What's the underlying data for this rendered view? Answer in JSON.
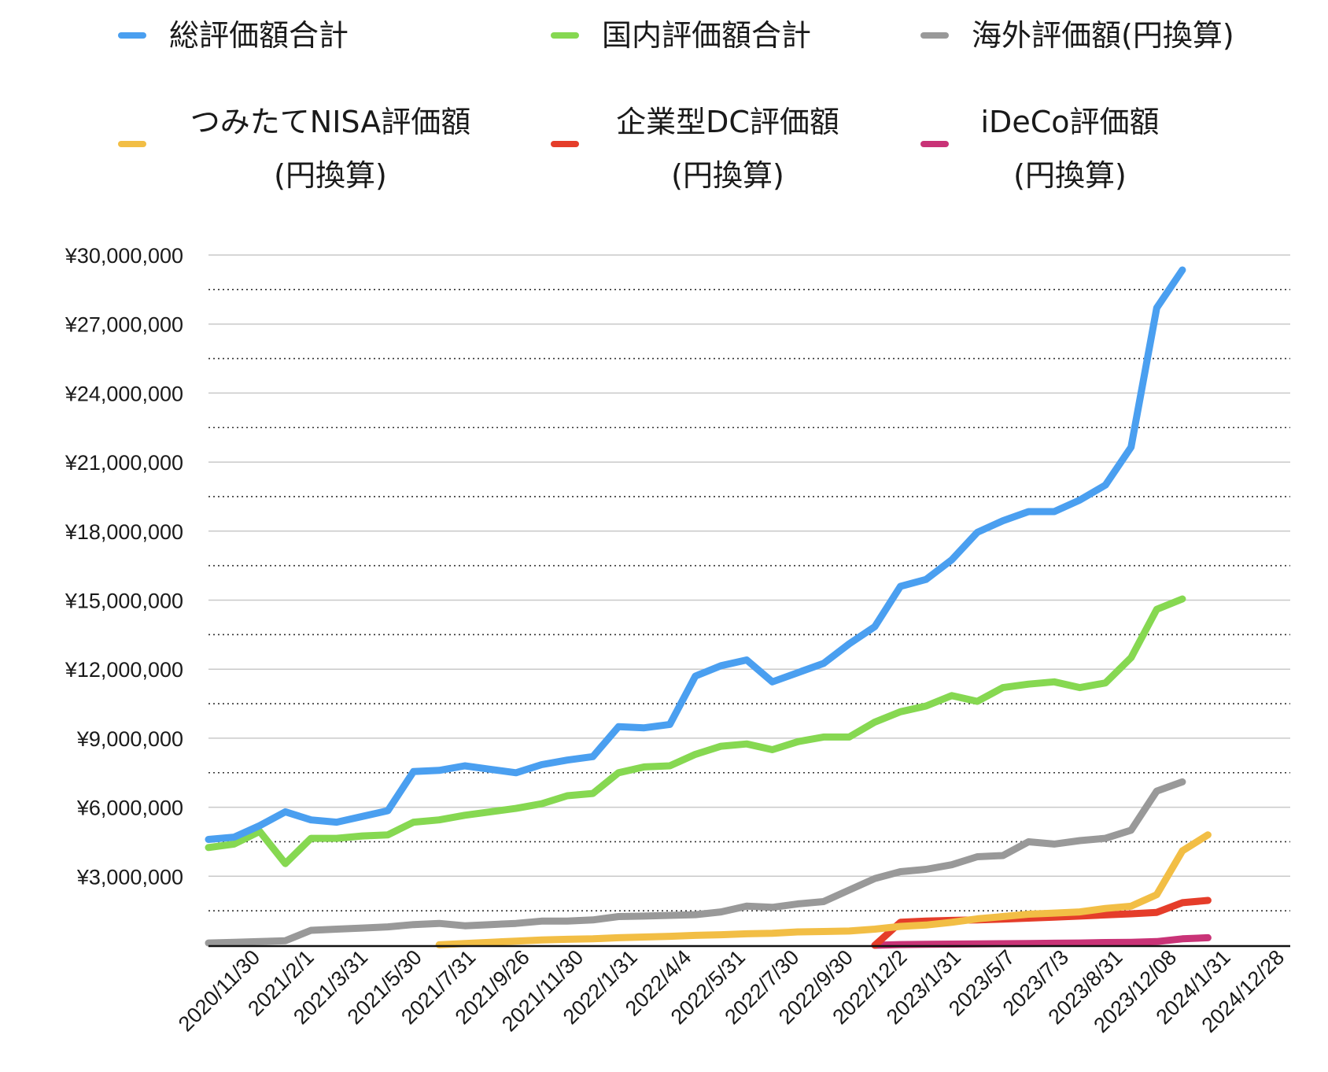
{
  "colors": {
    "total": "#4a9ff0",
    "domestic": "#86d851",
    "foreign": "#999999",
    "nisa": "#f2be45",
    "dc": "#e53d2a",
    "ideco": "#c93377"
  },
  "chart_data": {
    "type": "line",
    "title": "",
    "xlabel": "",
    "ylabel": "",
    "ylim": [
      0,
      30000000
    ],
    "y_ticks": [
      "¥3,000,000",
      "¥6,000,000",
      "¥9,000,000",
      "¥12,000,000",
      "¥15,000,000",
      "¥18,000,000",
      "¥21,000,000",
      "¥24,000,000",
      "¥27,000,000",
      "¥30,000,000"
    ],
    "x_tick_labels": [
      "2020/11/30",
      "2021/2/1",
      "2021/3/31",
      "2021/5/30",
      "2021/7/31",
      "2021/9/26",
      "2021/11/30",
      "2022/1/31",
      "2022/4/4",
      "2022/5/31",
      "2022/7/30",
      "2022/9/30",
      "2022/12/2",
      "2023/1/31",
      "2023/5/7",
      "2023/7/3",
      "2023/8/31",
      "2023/12/08",
      "2024/1/31",
      "2024/12/28"
    ],
    "grid": "horizontal major solid, minor dotted",
    "legend_position": "top",
    "legend": [
      {
        "key": "total",
        "label": "総評価額合計"
      },
      {
        "key": "domestic",
        "label": "国内評価額合計"
      },
      {
        "key": "foreign",
        "label": "海外評価額(円換算)"
      },
      {
        "key": "nisa",
        "label": "つみたてNISA評価額",
        "label2": "(円換算)"
      },
      {
        "key": "dc",
        "label": "企業型DC評価額",
        "label2": "(円換算)"
      },
      {
        "key": "ideco",
        "label": "iDeCo評価額",
        "label2": "(円換算)"
      }
    ],
    "series": [
      {
        "key": "total",
        "name": "総評価額合計",
        "start_index": 0,
        "values": [
          4600000,
          4700000,
          5200000,
          5800000,
          5450000,
          5350000,
          5600000,
          5850000,
          7550000,
          7600000,
          7800000,
          7650000,
          7500000,
          7850000,
          8050000,
          8200000,
          9500000,
          9450000,
          9600000,
          11700000,
          12150000,
          12400000,
          11450000,
          11850000,
          12250000,
          13100000,
          13850000,
          15600000,
          15900000,
          16750000,
          17950000,
          18450000,
          18850000,
          18850000,
          19350000,
          20000000,
          21650000,
          27700000,
          29350000
        ]
      },
      {
        "key": "domestic",
        "name": "国内評価額合計",
        "start_index": 0,
        "values": [
          4250000,
          4400000,
          4950000,
          3550000,
          4650000,
          4650000,
          4750000,
          4800000,
          5350000,
          5450000,
          5650000,
          5800000,
          5950000,
          6150000,
          6500000,
          6600000,
          7500000,
          7750000,
          7800000,
          8300000,
          8650000,
          8750000,
          8500000,
          8850000,
          9050000,
          9050000,
          9700000,
          10150000,
          10400000,
          10850000,
          10600000,
          11200000,
          11350000,
          11450000,
          11200000,
          11400000,
          12500000,
          14600000,
          15050000
        ]
      },
      {
        "key": "foreign",
        "name": "海外評価額(円換算)",
        "start_index": 0,
        "values": [
          100000,
          130000,
          160000,
          200000,
          650000,
          700000,
          750000,
          800000,
          900000,
          950000,
          850000,
          900000,
          950000,
          1050000,
          1050000,
          1100000,
          1250000,
          1270000,
          1300000,
          1330000,
          1450000,
          1700000,
          1650000,
          1800000,
          1900000,
          2400000,
          2900000,
          3200000,
          3300000,
          3500000,
          3850000,
          3900000,
          4500000,
          4400000,
          4550000,
          4650000,
          5000000,
          6700000,
          7100000
        ]
      },
      {
        "key": "nisa",
        "name": "つみたてNISA評価額(円換算)",
        "start_index": 9,
        "values": [
          20000,
          80000,
          130000,
          180000,
          230000,
          260000,
          280000,
          330000,
          360000,
          390000,
          430000,
          460000,
          500000,
          520000,
          580000,
          600000,
          620000,
          700000,
          820000,
          880000,
          1000000,
          1150000,
          1250000,
          1350000,
          1400000,
          1450000,
          1600000,
          1700000,
          2200000,
          4100000,
          4800000
        ]
      },
      {
        "key": "dc",
        "name": "企業型DC評価額(円換算)",
        "start_index": 26,
        "values": [
          0,
          1000000,
          1050000,
          1080000,
          1100000,
          1140000,
          1180000,
          1220000,
          1270000,
          1320000,
          1370000,
          1430000,
          1850000,
          1950000
        ]
      },
      {
        "key": "ideco",
        "name": "iDeCo評価額(円換算)",
        "start_index": 26,
        "values": [
          0,
          30000,
          40000,
          50000,
          60000,
          70000,
          80000,
          90000,
          100000,
          120000,
          130000,
          160000,
          280000,
          330000
        ]
      }
    ]
  }
}
